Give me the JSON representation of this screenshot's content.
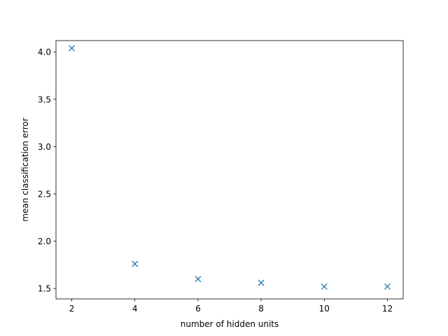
{
  "chart_data": {
    "type": "scatter",
    "title": "",
    "xlabel": "number of hidden units",
    "ylabel": "mean classification error",
    "marker": "x",
    "color": "#1f77b4",
    "grid": false,
    "xlim": [
      1.5,
      12.5
    ],
    "ylim": [
      1.39,
      4.12
    ],
    "xticks": [
      2,
      4,
      6,
      8,
      10,
      12
    ],
    "xtick_labels": [
      "2",
      "4",
      "6",
      "8",
      "10",
      "12"
    ],
    "yticks": [
      1.5,
      2.0,
      2.5,
      3.0,
      3.5,
      4.0
    ],
    "ytick_labels": [
      "1.5",
      "2.0",
      "2.5",
      "3.0",
      "3.5",
      "4.0"
    ],
    "series": [
      {
        "x": [
          2,
          4,
          6,
          8,
          10,
          12
        ],
        "y": [
          4.04,
          1.76,
          1.6,
          1.56,
          1.52,
          1.52
        ]
      }
    ]
  }
}
